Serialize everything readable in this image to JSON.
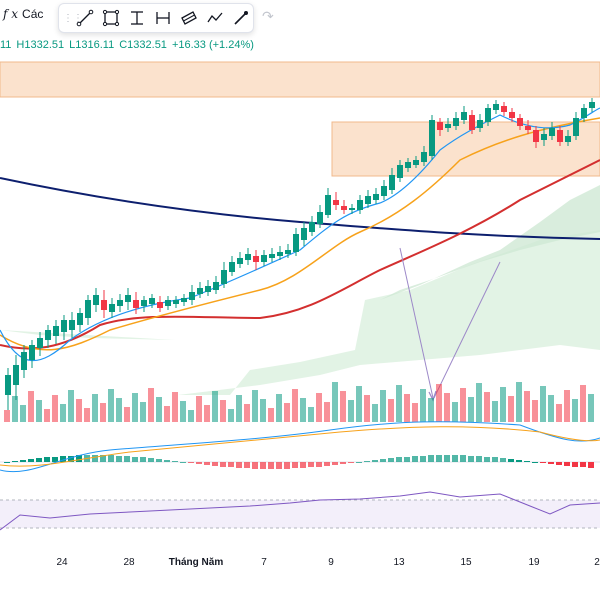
{
  "header": {
    "fx_symbol": "f x",
    "indicator_label": "Các",
    "ohlc": {
      "open": "11",
      "high": "H1332.51",
      "low": "L1316.11",
      "close": "C1332.51",
      "change": "+16.33 (+1.24%)"
    }
  },
  "toolbar": {
    "tools": [
      {
        "name": "trend-line-icon"
      },
      {
        "name": "rectangle-icon"
      },
      {
        "name": "vertical-range-icon"
      },
      {
        "name": "horizontal-range-icon"
      },
      {
        "name": "parallel-channel-icon"
      },
      {
        "name": "path-icon"
      },
      {
        "name": "brush-icon"
      }
    ],
    "redo_icon": "redo-icon"
  },
  "xaxis": {
    "labels": [
      {
        "text": "24",
        "bold": false
      },
      {
        "text": "28",
        "bold": false
      },
      {
        "text": "Tháng Năm",
        "bold": true
      },
      {
        "text": "7",
        "bold": false
      },
      {
        "text": "9",
        "bold": false
      },
      {
        "text": "13",
        "bold": false
      },
      {
        "text": "15",
        "bold": false
      },
      {
        "text": "19",
        "bold": false
      },
      {
        "text": "2",
        "bold": false
      }
    ]
  },
  "colors": {
    "up": "#089981",
    "down": "#f23645",
    "ema_fast": "#2196f3",
    "ema_mid": "#f7a21b",
    "ema_slow": "#d32f2f",
    "ema_long": "#0d1f6e",
    "cloud": "#d8efdc",
    "zone": "#fbe2cd",
    "arrow": "#9c88c8",
    "rsi": "#7e57c2"
  }
}
